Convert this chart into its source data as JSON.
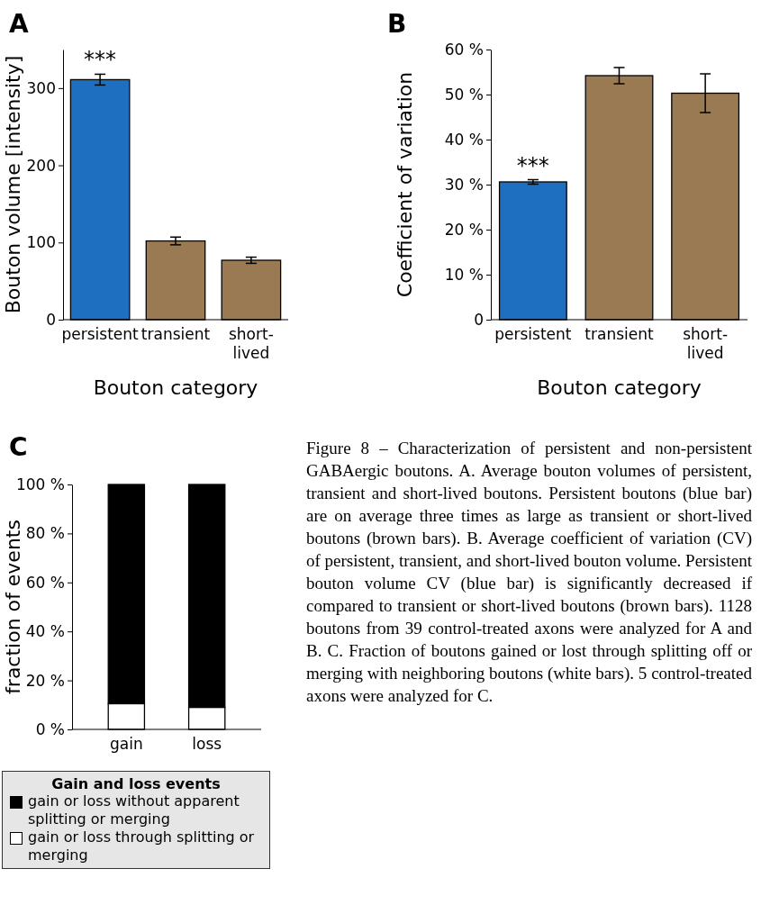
{
  "chart_data": [
    {
      "type": "bar",
      "title": "A",
      "ylabel": "Bouton volume [intensity]",
      "xlabel": "Bouton category",
      "categories": [
        "persistent",
        "transient",
        "short-lived"
      ],
      "values": [
        311,
        102,
        77
      ],
      "errors": [
        7,
        5,
        4
      ],
      "colors": [
        "#1f6fc0",
        "#9a7a52",
        "#9a7a52"
      ],
      "ylim": [
        0,
        350
      ],
      "yticks": [
        0,
        100,
        200,
        300
      ],
      "annotations": [
        "***"
      ]
    },
    {
      "type": "bar",
      "title": "B",
      "ylabel": "Coefficient of variation",
      "xlabel": "Bouton category",
      "categories": [
        "persistent",
        "transient",
        "short-lived"
      ],
      "values": [
        30.6,
        54.2,
        50.3
      ],
      "errors": [
        0.5,
        1.8,
        4.3
      ],
      "colors": [
        "#1f6fc0",
        "#9a7a52",
        "#9a7a52"
      ],
      "ylim": [
        0,
        60
      ],
      "yticks": [
        0,
        {
          "value": 10,
          "label": "10 %"
        },
        {
          "value": 20,
          "label": "20 %"
        },
        {
          "value": 30,
          "label": "30 %"
        },
        {
          "value": 40,
          "label": "40 %"
        },
        {
          "value": 50,
          "label": "50 %"
        },
        {
          "value": 60,
          "label": "60 %"
        }
      ],
      "annotations": [
        "***"
      ]
    },
    {
      "type": "bar",
      "title": "C",
      "ylabel": "fraction of events",
      "categories": [
        "gain",
        "loss"
      ],
      "stacked": true,
      "legend": "bottom",
      "legend_title": "Gain and loss events",
      "series": [
        {
          "name": "gain or loss through splitting or merging",
          "color": "#ffffff",
          "values": [
            10.5,
            9
          ]
        },
        {
          "name": "gain or loss without apparent splitting or merging",
          "color": "#000000",
          "values": [
            89.5,
            91
          ]
        }
      ],
      "ylim": [
        0,
        100
      ],
      "yticks": [
        {
          "value": 0,
          "label": "0 %"
        },
        {
          "value": 20,
          "label": "20 %"
        },
        {
          "value": 40,
          "label": "40 %"
        },
        {
          "value": 60,
          "label": "60 %"
        },
        {
          "value": 80,
          "label": "80 %"
        },
        {
          "value": 100,
          "label": "100 %"
        }
      ],
      "annotations": [
        "Figure 8 – Characterization of persistent and non-persistent GABAergic boutons. A. Average bouton volumes of persistent, transient and short-lived boutons. Persistent boutons (blue bar) are on average three times as large as transient or short-lived boutons (brown bars). B. Average coefficient of variation (CV) of persistent, transient, and short-lived bouton volume. Persistent bouton volume CV (blue bar) is significantly decreased if compared to transient or short-lived boutons (brown bars). 1128 boutons from 39 control-treated axons were analyzed for A and B. C. Fraction of boutons gained or lost through splitting off or merging with neighboring boutons (white bars). 5 control-treated axons were analyzed for C."
      ]
    }
  ]
}
